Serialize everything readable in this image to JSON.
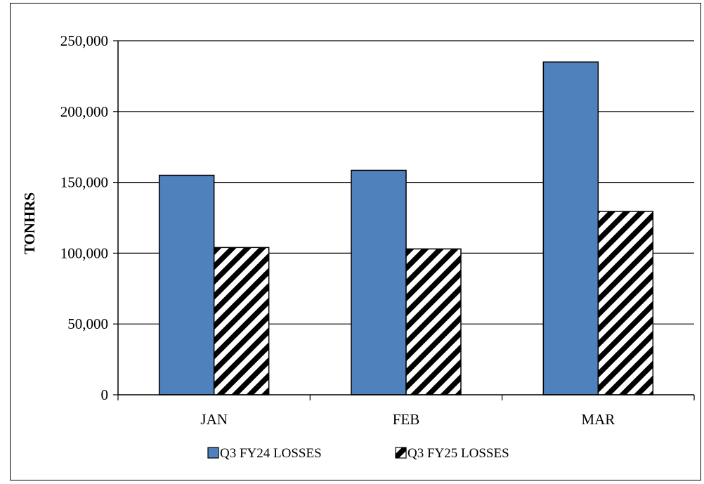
{
  "chart_data": {
    "type": "bar",
    "categories": [
      "JAN",
      "FEB",
      "MAR"
    ],
    "series": [
      {
        "name": "Q3 FY24 LOSSES",
        "values": [
          155000,
          158500,
          235000
        ],
        "color": "#4F81BD",
        "pattern": "solid"
      },
      {
        "name": "Q3 FY25 LOSSES",
        "values": [
          104000,
          103000,
          129500
        ],
        "color": "#000000",
        "pattern": "diagonal-stripes"
      }
    ],
    "ylabel": "TONHRS",
    "ylim": [
      0,
      250000
    ],
    "yticks": [
      0,
      50000,
      100000,
      150000,
      200000,
      250000
    ],
    "ytick_labels": [
      "0",
      "50,000",
      "100,000",
      "150,000",
      "200,000",
      "250,000"
    ],
    "grid": true,
    "legend_position": "bottom"
  }
}
